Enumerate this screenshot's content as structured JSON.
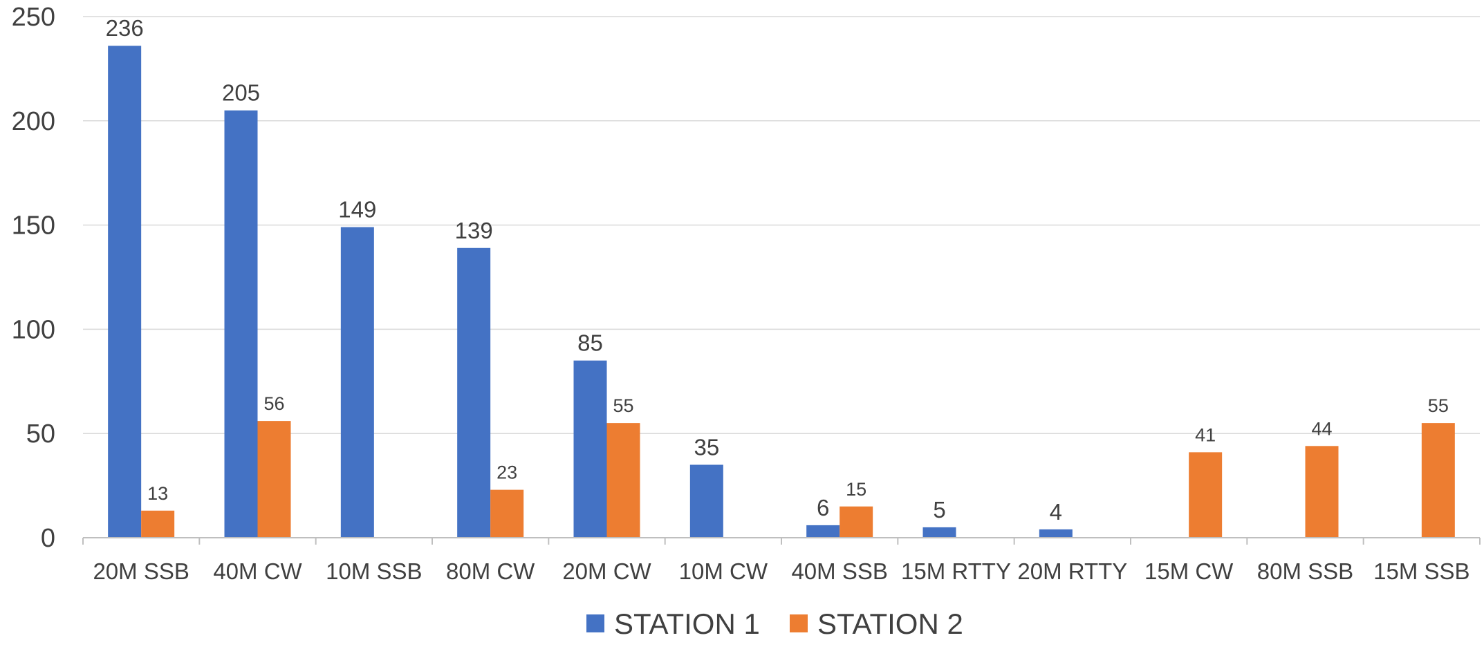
{
  "chart_data": {
    "type": "bar",
    "title": "",
    "xlabel": "",
    "ylabel": "",
    "ylim": [
      0,
      250
    ],
    "yticks": [
      "0",
      "50",
      "100",
      "150",
      "200",
      "250"
    ],
    "grid": true,
    "legend_position": "bottom-center",
    "categories": [
      "20M SSB",
      "40M CW",
      "10M SSB",
      "80M CW",
      "20M CW",
      "10M CW",
      "40M SSB",
      "15M RTTY",
      "20M RTTY",
      "15M CW",
      "80M SSB",
      "15M SSB"
    ],
    "series": [
      {
        "name": "STATION 1",
        "color": "#4472C4",
        "values": [
          236,
          205,
          149,
          139,
          85,
          35,
          6,
          5,
          4,
          null,
          null,
          null
        ]
      },
      {
        "name": "STATION 2",
        "color": "#ED7D31",
        "values": [
          13,
          56,
          null,
          23,
          55,
          null,
          15,
          null,
          null,
          41,
          44,
          55
        ]
      }
    ]
  }
}
